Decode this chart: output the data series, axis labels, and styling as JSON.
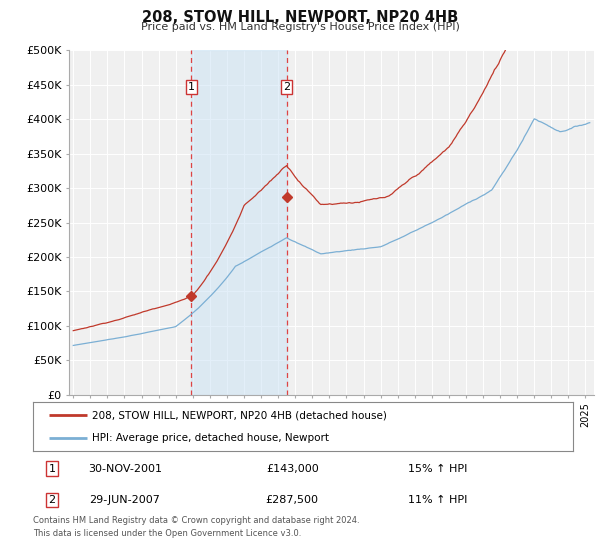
{
  "title": "208, STOW HILL, NEWPORT, NP20 4HB",
  "subtitle": "Price paid vs. HM Land Registry's House Price Index (HPI)",
  "ylim": [
    0,
    500000
  ],
  "yticks": [
    0,
    50000,
    100000,
    150000,
    200000,
    250000,
    300000,
    350000,
    400000,
    450000,
    500000
  ],
  "ytick_labels": [
    "£0",
    "£50K",
    "£100K",
    "£150K",
    "£200K",
    "£250K",
    "£300K",
    "£350K",
    "£400K",
    "£450K",
    "£500K"
  ],
  "xlim_start": 1994.75,
  "xlim_end": 2025.5,
  "bg_color": "#ffffff",
  "plot_bg_color": "#f0f0f0",
  "grid_color": "#ffffff",
  "sale1_date": 2001.92,
  "sale1_price": 143000,
  "sale2_date": 2007.49,
  "sale2_price": 287500,
  "vline_color": "#d44",
  "span_color": "#cde4f5",
  "span_alpha": 0.55,
  "sale_dot_color": "#c0392b",
  "hpi_line_color": "#7bafd4",
  "price_line_color": "#c0392b",
  "legend_entries": [
    "208, STOW HILL, NEWPORT, NP20 4HB (detached house)",
    "HPI: Average price, detached house, Newport"
  ],
  "table_row1": [
    "1",
    "30-NOV-2001",
    "£143,000",
    "15% ↑ HPI"
  ],
  "table_row2": [
    "2",
    "29-JUN-2007",
    "£287,500",
    "11% ↑ HPI"
  ],
  "footnote1": "Contains HM Land Registry data © Crown copyright and database right 2024.",
  "footnote2": "This data is licensed under the Open Government Licence v3.0."
}
